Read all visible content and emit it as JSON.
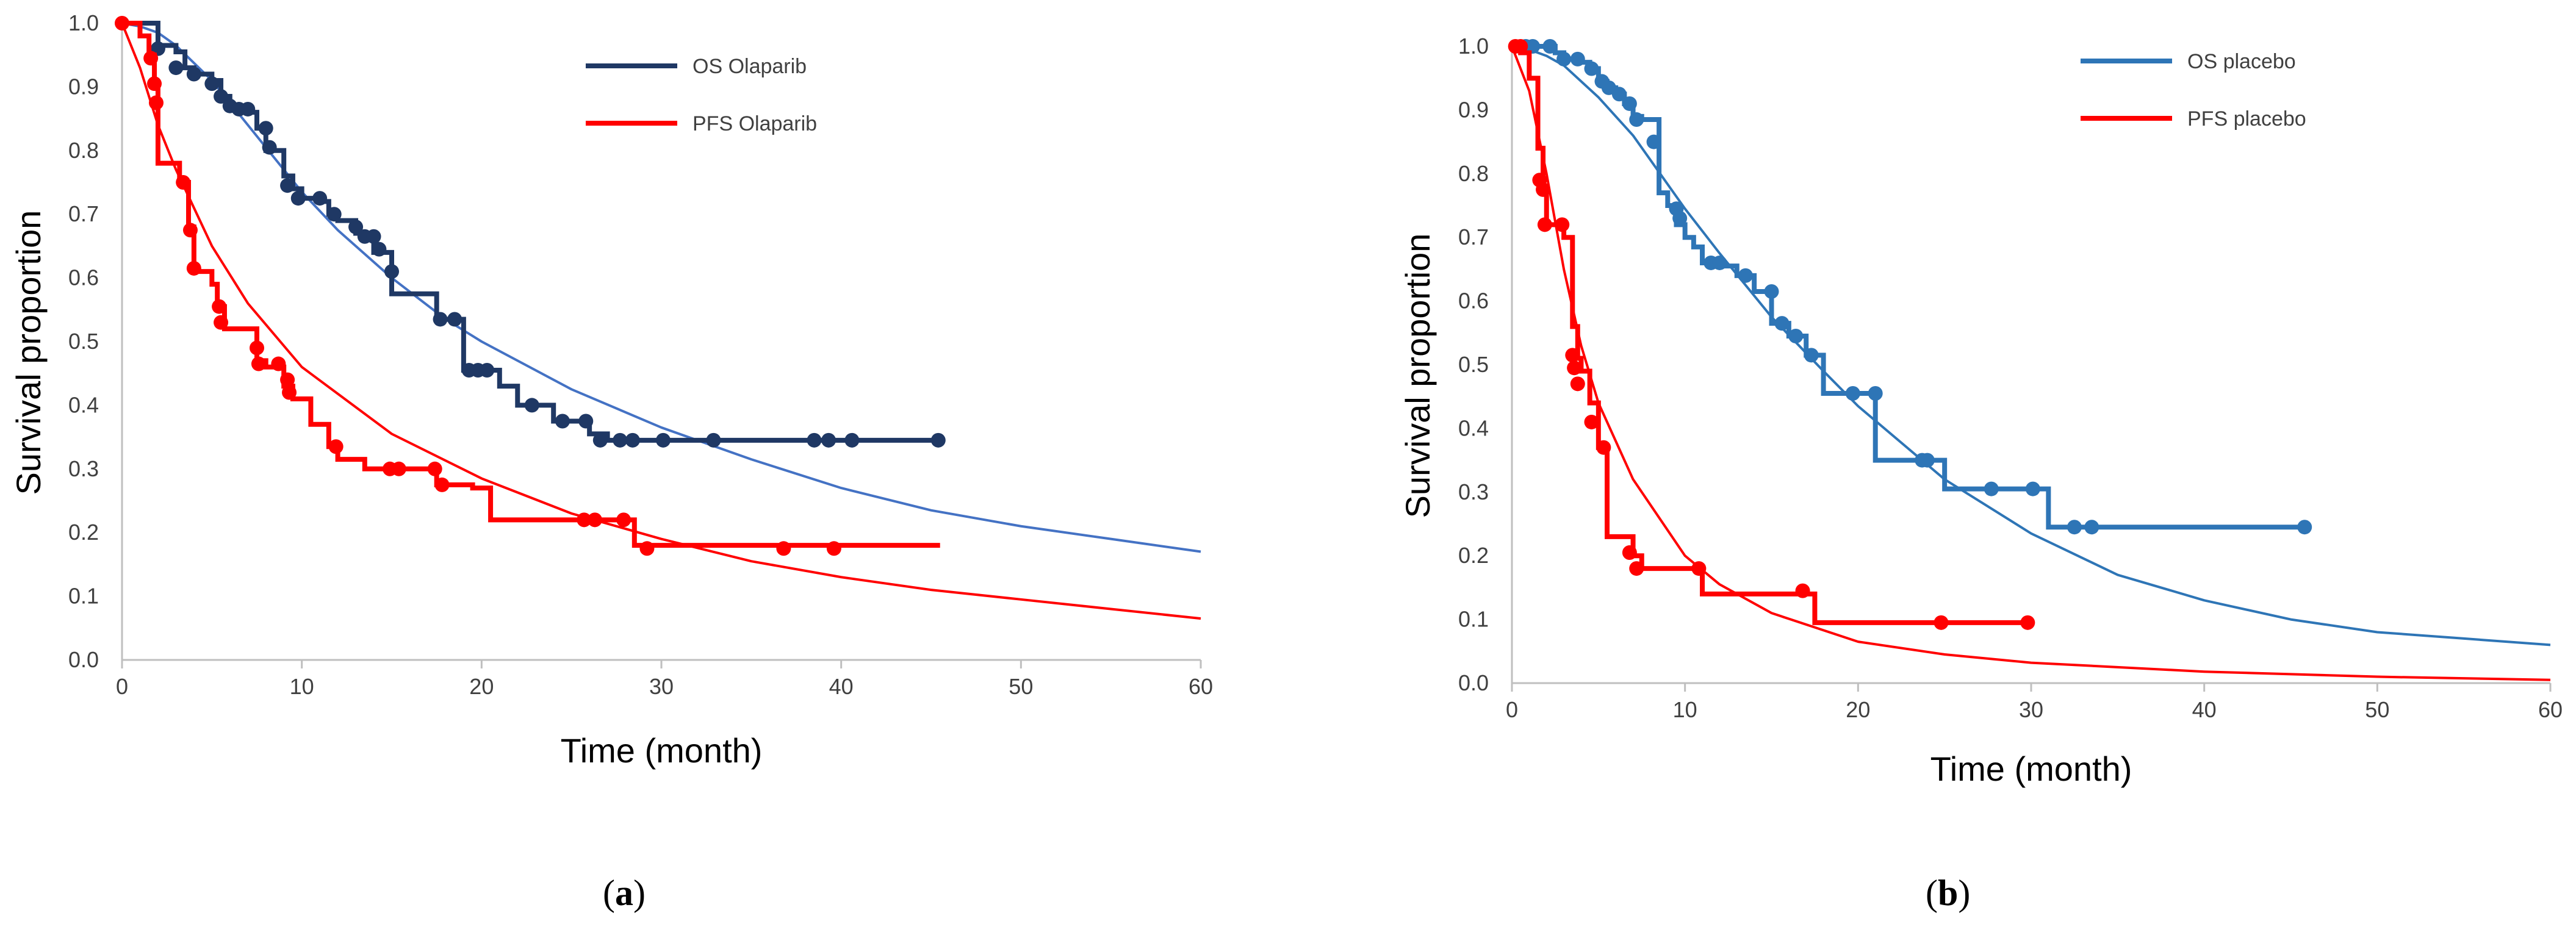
{
  "chart_data": [
    {
      "type": "line",
      "panel_label": "a",
      "xlabel": "Time (month)",
      "ylabel": "Survival proportion",
      "xlim": [
        0,
        60
      ],
      "ylim": [
        0,
        1.0
      ],
      "xticks": [
        "0",
        "10",
        "20",
        "30",
        "40",
        "50",
        "60"
      ],
      "yticks": [
        "0.0",
        "0.1",
        "0.2",
        "0.3",
        "0.4",
        "0.5",
        "0.6",
        "0.7",
        "0.8",
        "0.9",
        "1.0"
      ],
      "grid": false,
      "legend_position": "top-right",
      "series": [
        {
          "name": "OS Olaparib",
          "kind": "km_step",
          "color": "#1f3864",
          "x": [
            0,
            2,
            3,
            3.5,
            4,
            5,
            5.5,
            6,
            6.5,
            7,
            7.5,
            8,
            9,
            9.5,
            10,
            11,
            11.5,
            12,
            13,
            14,
            15,
            17.5,
            19,
            20,
            21,
            22,
            23,
            24,
            26,
            27,
            30,
            45.5
          ],
          "y": [
            1.0,
            0.965,
            0.955,
            0.93,
            0.92,
            0.91,
            0.885,
            0.87,
            0.865,
            0.86,
            0.835,
            0.8,
            0.76,
            0.74,
            0.725,
            0.72,
            0.7,
            0.69,
            0.67,
            0.64,
            0.575,
            0.535,
            0.455,
            0.455,
            0.43,
            0.4,
            0.4,
            0.375,
            0.355,
            0.345,
            0.345,
            0.345
          ],
          "censored": {
            "x": [
              2,
              3,
              4,
              5,
              5.5,
              6,
              6.5,
              7,
              8,
              8.2,
              9.2,
              9.8,
              11,
              11.8,
              13,
              13.5,
              14,
              14.3,
              15,
              17.7,
              18.5,
              19.3,
              19.8,
              20.3,
              22.8,
              24.5,
              25.8,
              26.6,
              27.7,
              28.4,
              30.1,
              32.9,
              38.5,
              39.3,
              40.6,
              45.4
            ],
            "y": [
              0.96,
              0.93,
              0.92,
              0.905,
              0.885,
              0.87,
              0.865,
              0.865,
              0.835,
              0.805,
              0.745,
              0.725,
              0.725,
              0.7,
              0.68,
              0.665,
              0.665,
              0.645,
              0.61,
              0.535,
              0.535,
              0.455,
              0.455,
              0.455,
              0.4,
              0.375,
              0.375,
              0.345,
              0.345,
              0.345,
              0.345,
              0.345,
              0.345,
              0.345,
              0.345,
              0.345
            ]
          }
        },
        {
          "name": "PFS Olaparib",
          "kind": "km_step",
          "color": "#ff0000",
          "x": [
            0,
            1,
            1.5,
            1.8,
            2.0,
            3.2,
            3.7,
            4.0,
            5.0,
            5.3,
            5.7,
            7.5,
            8.0,
            9.0,
            9.5,
            10.5,
            11.5,
            12.0,
            13.5,
            15.0,
            17.5,
            19.5,
            20.5,
            25.5,
            28.5,
            45.5
          ],
          "y": [
            1.0,
            0.98,
            0.95,
            0.9,
            0.78,
            0.75,
            0.68,
            0.61,
            0.59,
            0.555,
            0.52,
            0.47,
            0.46,
            0.43,
            0.41,
            0.37,
            0.335,
            0.315,
            0.3,
            0.3,
            0.275,
            0.27,
            0.22,
            0.22,
            0.18,
            0.18
          ],
          "censored": {
            "x": [
              0,
              1.6,
              1.8,
              1.9,
              3.4,
              3.8,
              4.0,
              5.4,
              5.5,
              7.5,
              7.6,
              8.7,
              9.2,
              9.3,
              11.9,
              14.9,
              15.4,
              17.4,
              17.8,
              25.7,
              26.3,
              27.9,
              29.2,
              36.8,
              39.6
            ],
            "y": [
              1.0,
              0.945,
              0.905,
              0.875,
              0.75,
              0.675,
              0.615,
              0.555,
              0.53,
              0.49,
              0.465,
              0.465,
              0.44,
              0.42,
              0.335,
              0.3,
              0.3,
              0.3,
              0.275,
              0.22,
              0.22,
              0.22,
              0.175,
              0.175,
              0.175
            ]
          }
        },
        {
          "name": "OS Olaparib fitted",
          "kind": "fitted_curve",
          "show_in_legend": false,
          "color": "#4472c4",
          "x": [
            0,
            1,
            2,
            3,
            5,
            7,
            10,
            12,
            15,
            18,
            20,
            25,
            30,
            35,
            40,
            45,
            50,
            55,
            60
          ],
          "y": [
            1.0,
            0.995,
            0.985,
            0.965,
            0.91,
            0.84,
            0.735,
            0.675,
            0.6,
            0.535,
            0.5,
            0.425,
            0.365,
            0.315,
            0.27,
            0.235,
            0.21,
            0.19,
            0.17
          ]
        },
        {
          "name": "PFS Olaparib fitted",
          "kind": "fitted_curve",
          "show_in_legend": false,
          "color": "#ff0000",
          "x": [
            0,
            1,
            2,
            3,
            5,
            7,
            10,
            15,
            20,
            25,
            30,
            35,
            40,
            45,
            50,
            55,
            60
          ],
          "y": [
            1.0,
            0.93,
            0.84,
            0.77,
            0.65,
            0.56,
            0.46,
            0.355,
            0.285,
            0.23,
            0.19,
            0.155,
            0.13,
            0.11,
            0.095,
            0.08,
            0.065
          ]
        }
      ]
    },
    {
      "type": "line",
      "panel_label": "b",
      "xlabel": "Time (month)",
      "ylabel": "Survival proportion",
      "xlim": [
        0,
        60
      ],
      "ylim": [
        0,
        1.0
      ],
      "xticks": [
        "0",
        "10",
        "20",
        "30",
        "40",
        "50",
        "60"
      ],
      "yticks": [
        "0.0",
        "0.1",
        "0.2",
        "0.3",
        "0.4",
        "0.5",
        "0.6",
        "0.7",
        "0.8",
        "0.9",
        "1.0"
      ],
      "grid": false,
      "legend_position": "top-right",
      "series": [
        {
          "name": "OS placebo",
          "kind": "km_step",
          "color": "#2e75b6",
          "x": [
            0,
            2.5,
            3,
            4,
            4.5,
            5,
            5.5,
            6,
            6.5,
            7,
            7.5,
            8.5,
            9,
            9.5,
            10,
            10.5,
            11,
            12,
            13,
            14,
            15,
            16,
            17,
            18,
            21,
            23,
            25,
            31,
            32,
            45.7
          ],
          "y": [
            1.0,
            0.99,
            0.98,
            0.975,
            0.965,
            0.945,
            0.935,
            0.925,
            0.91,
            0.89,
            0.885,
            0.77,
            0.75,
            0.72,
            0.7,
            0.685,
            0.66,
            0.655,
            0.64,
            0.615,
            0.565,
            0.545,
            0.515,
            0.455,
            0.35,
            0.35,
            0.305,
            0.245,
            0.245,
            0.245
          ],
          "censored": {
            "x": [
              0.8,
              1.2,
              2.2,
              3.0,
              3.8,
              4.6,
              5.2,
              5.6,
              6.2,
              6.8,
              7.2,
              8.2,
              9.5,
              9.7,
              11.5,
              12.0,
              13.5,
              15.0,
              15.6,
              16.4,
              17.3,
              19.7,
              21.0,
              23.7,
              24.0,
              27.7,
              30.1,
              32.5,
              33.5,
              45.8
            ],
            "y": [
              1.0,
              1.0,
              1.0,
              0.98,
              0.98,
              0.965,
              0.945,
              0.935,
              0.925,
              0.91,
              0.885,
              0.85,
              0.745,
              0.73,
              0.66,
              0.66,
              0.64,
              0.615,
              0.565,
              0.545,
              0.515,
              0.455,
              0.455,
              0.35,
              0.35,
              0.305,
              0.305,
              0.245,
              0.245,
              0.245
            ]
          }
        },
        {
          "name": "PFS placebo",
          "kind": "km_step",
          "color": "#ff0000",
          "x": [
            0,
            0.5,
            1.0,
            1.5,
            1.8,
            2.0,
            3.0,
            3.5,
            3.8,
            4.0,
            4.5,
            5.0,
            5.5,
            6.0,
            7.0,
            7.5,
            11.0,
            17.5,
            29.8
          ],
          "y": [
            1.0,
            0.99,
            0.95,
            0.84,
            0.78,
            0.72,
            0.7,
            0.56,
            0.51,
            0.49,
            0.44,
            0.37,
            0.23,
            0.23,
            0.2,
            0.18,
            0.14,
            0.095,
            0.095
          ],
          "censored": {
            "x": [
              0.2,
              0.5,
              1.6,
              1.8,
              1.9,
              2.9,
              3.5,
              3.6,
              3.8,
              4.6,
              5.3,
              6.8,
              7.2,
              10.8,
              16.8,
              24.8,
              29.8
            ],
            "y": [
              1.0,
              1.0,
              0.79,
              0.775,
              0.72,
              0.72,
              0.515,
              0.495,
              0.47,
              0.41,
              0.37,
              0.205,
              0.18,
              0.18,
              0.145,
              0.095,
              0.095
            ]
          }
        },
        {
          "name": "OS placebo fitted",
          "kind": "fitted_curve",
          "show_in_legend": false,
          "color": "#2e75b6",
          "x": [
            0,
            1,
            2,
            3,
            5,
            7,
            10,
            12,
            15,
            18,
            20,
            25,
            30,
            35,
            40,
            45,
            50,
            55,
            60
          ],
          "y": [
            1.0,
            0.995,
            0.985,
            0.97,
            0.92,
            0.86,
            0.745,
            0.675,
            0.575,
            0.49,
            0.435,
            0.32,
            0.235,
            0.17,
            0.13,
            0.1,
            0.08,
            0.07,
            0.06
          ]
        },
        {
          "name": "PFS placebo fitted",
          "kind": "fitted_curve",
          "show_in_legend": false,
          "color": "#ff0000",
          "x": [
            0,
            1,
            2,
            3,
            4,
            5,
            7,
            10,
            12,
            15,
            20,
            25,
            30,
            40,
            50,
            60
          ],
          "y": [
            1.0,
            0.93,
            0.8,
            0.65,
            0.53,
            0.44,
            0.32,
            0.2,
            0.155,
            0.11,
            0.065,
            0.045,
            0.032,
            0.018,
            0.01,
            0.005
          ]
        }
      ]
    }
  ]
}
